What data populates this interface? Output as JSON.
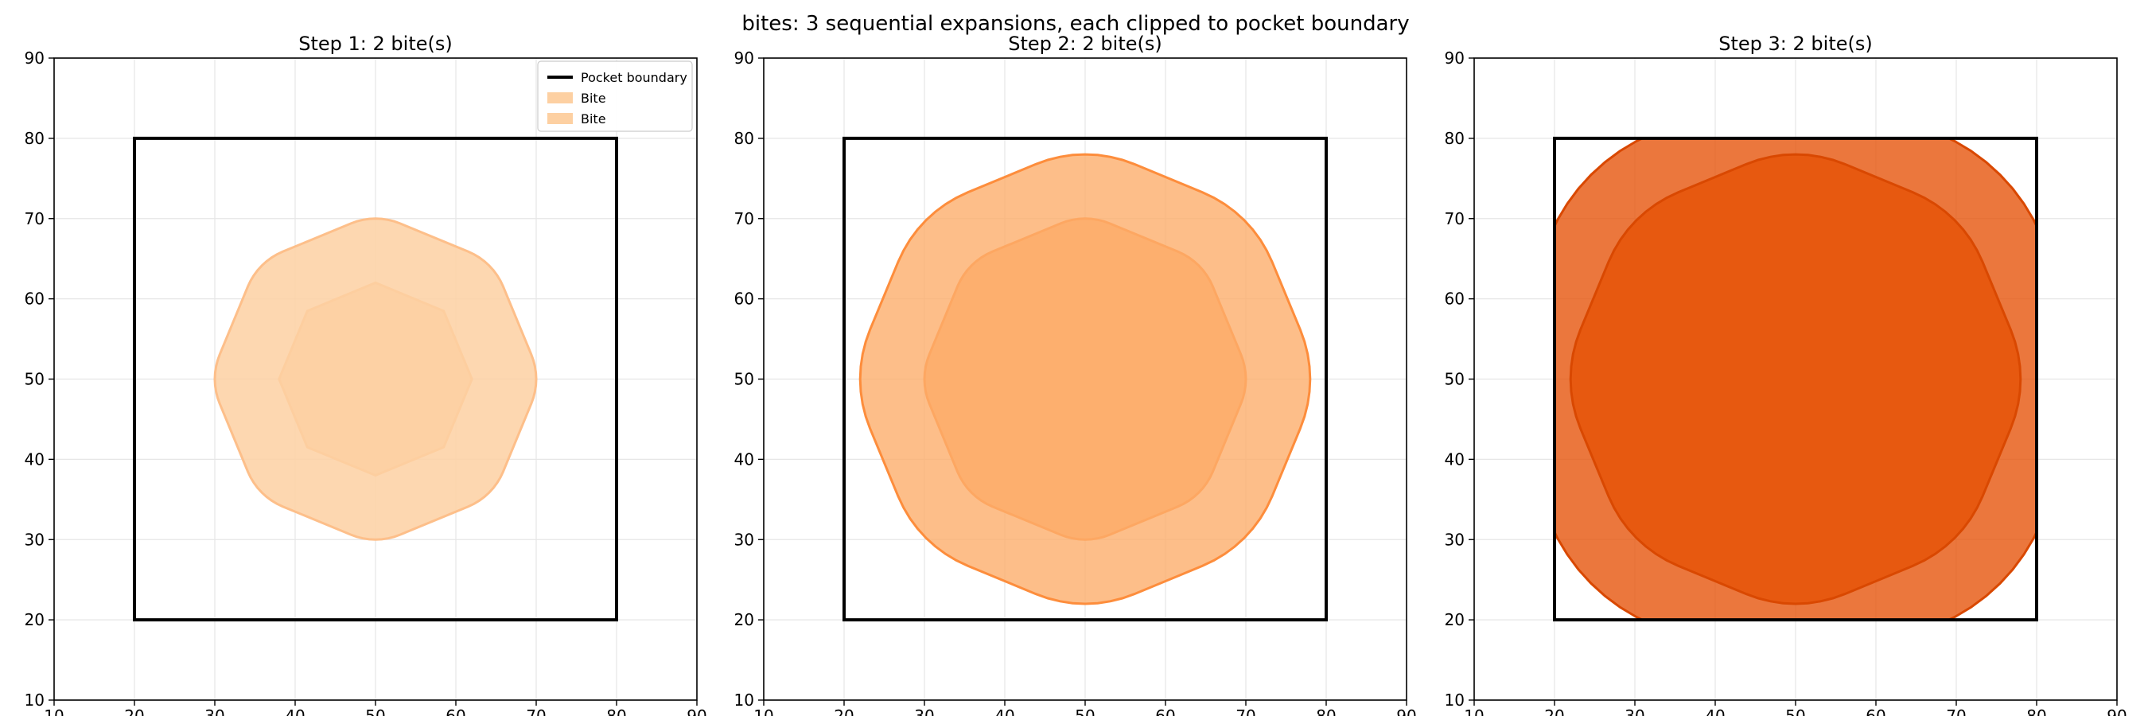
{
  "suptitle": "bites: 3 sequential expansions, each clipped to pocket boundary",
  "colors": {
    "boundary": "#000000",
    "grid": "#e6e6e6",
    "step1_fill": "#fdd0a2",
    "step1_edge": "#fdbf8a",
    "step2_fill": "#fdae6b",
    "step2_edge": "#fd8d3c",
    "step3_fill": "#e6550d",
    "step3_edge": "#d94801"
  },
  "chart_data": [
    {
      "type": "area",
      "title": "Step 1: 2 bite(s)",
      "xlim": [
        10,
        90
      ],
      "ylim": [
        10,
        90
      ],
      "xticks": [
        10,
        20,
        30,
        40,
        50,
        60,
        70,
        80,
        90
      ],
      "yticks": [
        10,
        20,
        30,
        40,
        50,
        60,
        70,
        80,
        90
      ],
      "grid": true,
      "legend_placement": "top-right",
      "legend": [
        "Pocket boundary",
        "Bite",
        "Bite"
      ],
      "boundary": {
        "name": "Pocket boundary",
        "x": [
          20,
          80,
          80,
          20
        ],
        "y": [
          20,
          20,
          80,
          80
        ]
      },
      "previous_bites": [],
      "bites": [
        {
          "name": "Bite",
          "center": [
            50,
            50
          ],
          "octagon_radius": 12,
          "rounding": 0,
          "clip": [
            20,
            80,
            20,
            80
          ]
        },
        {
          "name": "Bite",
          "center": [
            50,
            50
          ],
          "octagon_radius": 12,
          "rounding": 8,
          "clip": [
            20,
            80,
            20,
            80
          ]
        }
      ]
    },
    {
      "type": "area",
      "title": "Step 2: 2 bite(s)",
      "xlim": [
        10,
        90
      ],
      "ylim": [
        10,
        90
      ],
      "xticks": [
        10,
        20,
        30,
        40,
        50,
        60,
        70,
        80,
        90
      ],
      "yticks": [
        10,
        20,
        30,
        40,
        50,
        60,
        70,
        80,
        90
      ],
      "grid": true,
      "boundary": {
        "name": "Pocket boundary",
        "x": [
          20,
          80,
          80,
          20
        ],
        "y": [
          20,
          20,
          80,
          80
        ]
      },
      "previous_bites": [
        {
          "center": [
            50,
            50
          ],
          "octagon_radius": 12,
          "rounding": 8,
          "clip": [
            20,
            80,
            20,
            80
          ]
        }
      ],
      "bites": [
        {
          "name": "Bite",
          "center": [
            50,
            50
          ],
          "octagon_radius": 12,
          "rounding": 8,
          "clip": [
            20,
            80,
            20,
            80
          ]
        },
        {
          "name": "Bite",
          "center": [
            50,
            50
          ],
          "octagon_radius": 12,
          "rounding": 16,
          "clip": [
            20,
            80,
            20,
            80
          ]
        }
      ]
    },
    {
      "type": "area",
      "title": "Step 3: 2 bite(s)",
      "xlim": [
        10,
        90
      ],
      "ylim": [
        10,
        90
      ],
      "xticks": [
        10,
        20,
        30,
        40,
        50,
        60,
        70,
        80,
        90
      ],
      "yticks": [
        10,
        20,
        30,
        40,
        50,
        60,
        70,
        80,
        90
      ],
      "grid": true,
      "boundary": {
        "name": "Pocket boundary",
        "x": [
          20,
          80,
          80,
          20
        ],
        "y": [
          20,
          20,
          80,
          80
        ]
      },
      "previous_bites": [
        {
          "center": [
            50,
            50
          ],
          "octagon_radius": 12,
          "rounding": 16,
          "clip": [
            20,
            80,
            20,
            80
          ]
        }
      ],
      "bites": [
        {
          "name": "Bite",
          "center": [
            50,
            50
          ],
          "octagon_radius": 12,
          "rounding": 24,
          "clip": [
            20,
            80,
            20,
            80
          ]
        },
        {
          "name": "Bite",
          "center": [
            50,
            50
          ],
          "octagon_radius": 12,
          "rounding": 16,
          "clip": [
            20,
            80,
            20,
            80
          ]
        }
      ]
    }
  ]
}
